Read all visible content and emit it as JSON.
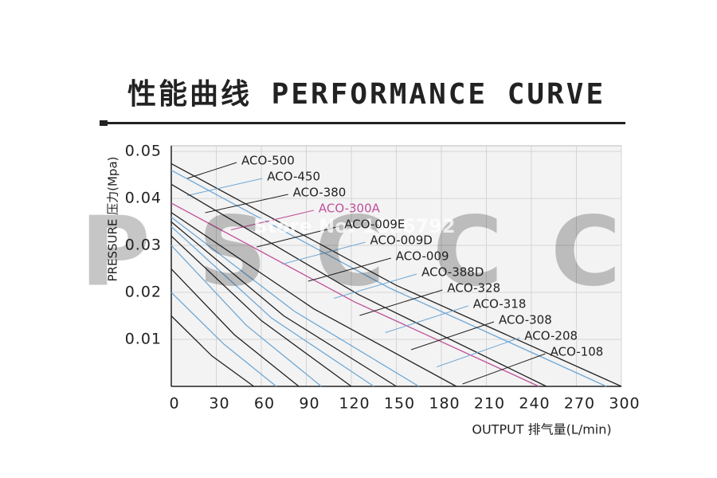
{
  "chart_data": {
    "type": "line",
    "title": "性能曲线 PERFORMANCE CURVE",
    "y_label": "PRESSURE 压力(Mpa)",
    "x_label": "OUTPUT 排气量(L/min)",
    "watermark": "PSCCC",
    "store_watermark": "Store No: 1856792",
    "xlim": [
      0,
      300
    ],
    "xticks": [
      0,
      30,
      60,
      90,
      120,
      150,
      180,
      210,
      240,
      270,
      300
    ],
    "ylim": [
      0,
      0.0512
    ],
    "yticks": [
      0.01,
      0.02,
      0.03,
      0.04,
      0.05
    ],
    "grid": true,
    "series": [
      {
        "name": "ACO-500",
        "color": "#222222",
        "x": [
          0,
          150,
          300
        ],
        "values": [
          0.0474,
          0.0215,
          0
        ]
      },
      {
        "name": "ACO-450",
        "color": "#6fa8d6",
        "x": [
          0,
          145,
          290
        ],
        "values": [
          0.046,
          0.021,
          0
        ]
      },
      {
        "name": "ACO-380",
        "color": "#222222",
        "x": [
          0,
          125,
          250
        ],
        "values": [
          0.043,
          0.0195,
          0
        ]
      },
      {
        "name": "ACO-300A",
        "color": "#c0509a",
        "x": [
          0,
          122,
          245
        ],
        "values": [
          0.039,
          0.018,
          0
        ]
      },
      {
        "name": "ACO-009E",
        "color": "#222222",
        "x": [
          0,
          95,
          190
        ],
        "values": [
          0.037,
          0.0165,
          0
        ]
      },
      {
        "name": "ACO-009D",
        "color": "#6fa8d6",
        "x": [
          0,
          82,
          165
        ],
        "values": [
          0.036,
          0.016,
          0
        ]
      },
      {
        "name": "ACO-009",
        "color": "#222222",
        "x": [
          0,
          75,
          150
        ],
        "values": [
          0.035,
          0.015,
          0
        ]
      },
      {
        "name": "ACO-388D",
        "color": "#6fa8d6",
        "x": [
          0,
          67,
          135
        ],
        "values": [
          0.034,
          0.0145,
          0
        ]
      },
      {
        "name": "ACO-328",
        "color": "#222222",
        "x": [
          0,
          60,
          120
        ],
        "values": [
          0.032,
          0.014,
          0
        ]
      },
      {
        "name": "ACO-318",
        "color": "#6fa8d6",
        "x": [
          0,
          50,
          100
        ],
        "values": [
          0.03,
          0.013,
          0
        ]
      },
      {
        "name": "ACO-308",
        "color": "#222222",
        "x": [
          0,
          42,
          85
        ],
        "values": [
          0.025,
          0.011,
          0
        ]
      },
      {
        "name": "ACO-208",
        "color": "#6fa8d6",
        "x": [
          0,
          35,
          70
        ],
        "values": [
          0.02,
          0.009,
          0
        ]
      },
      {
        "name": "ACO-108",
        "color": "#222222",
        "x": [
          0,
          27,
          55
        ],
        "values": [
          0.015,
          0.0065,
          0
        ]
      }
    ]
  }
}
